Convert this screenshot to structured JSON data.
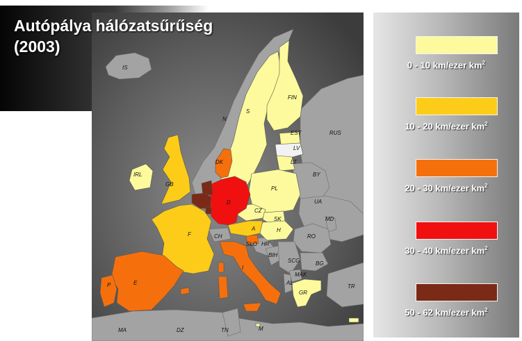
{
  "title": "Autópálya hálózatsűrűség\n(2003)",
  "colors": {
    "background_map": "#595959",
    "non_data": "#9a9a9a",
    "no_data_light": "#f2f2f2",
    "class_1": "#fcfa9c",
    "class_2": "#fccc19",
    "class_3": "#f5700d",
    "class_4": "#f01010",
    "class_5": "#7a2a16"
  },
  "legend": [
    {
      "color": "#fcfa9c",
      "range": "0 - 10 km/ezer km",
      "unit_exp": "2"
    },
    {
      "color": "#fccc19",
      "range": "10 - 20 km/ezer km",
      "unit_exp": "2"
    },
    {
      "color": "#f5700d",
      "range": "20 - 30 km/ezer km",
      "unit_exp": "2"
    },
    {
      "color": "#f01010",
      "range": "30 - 40 km/ezer km",
      "unit_exp": "2"
    },
    {
      "color": "#7a2a16",
      "range": "50 - 62 km/ezer km",
      "unit_exp": "2"
    }
  ],
  "countries": {
    "IS": "IS",
    "N": "N",
    "S": "S",
    "FIN": "FIN",
    "EST": "EST",
    "LV": "LV",
    "LT": "LT",
    "RUS": "RUS",
    "BY": "BY",
    "UA": "UA",
    "MD": "MD",
    "RO": "RO",
    "BG": "BG",
    "TR": "TR",
    "IRL": "IRL",
    "GB": "GB",
    "DK": "DK",
    "D": "D",
    "PL": "PL",
    "CZ": "CZ",
    "SK": "SK",
    "H": "H",
    "A": "A",
    "CH": "CH",
    "F": "F",
    "SLO": "SLO",
    "HR": "HR",
    "BIH": "BIH",
    "SCG": "SCG",
    "MAK": "MAK",
    "AL": "AL",
    "GR": "GR",
    "I": "I",
    "E": "E",
    "P": "P",
    "MA": "MA",
    "DZ": "DZ",
    "TN": "TN",
    "M": "M"
  }
}
